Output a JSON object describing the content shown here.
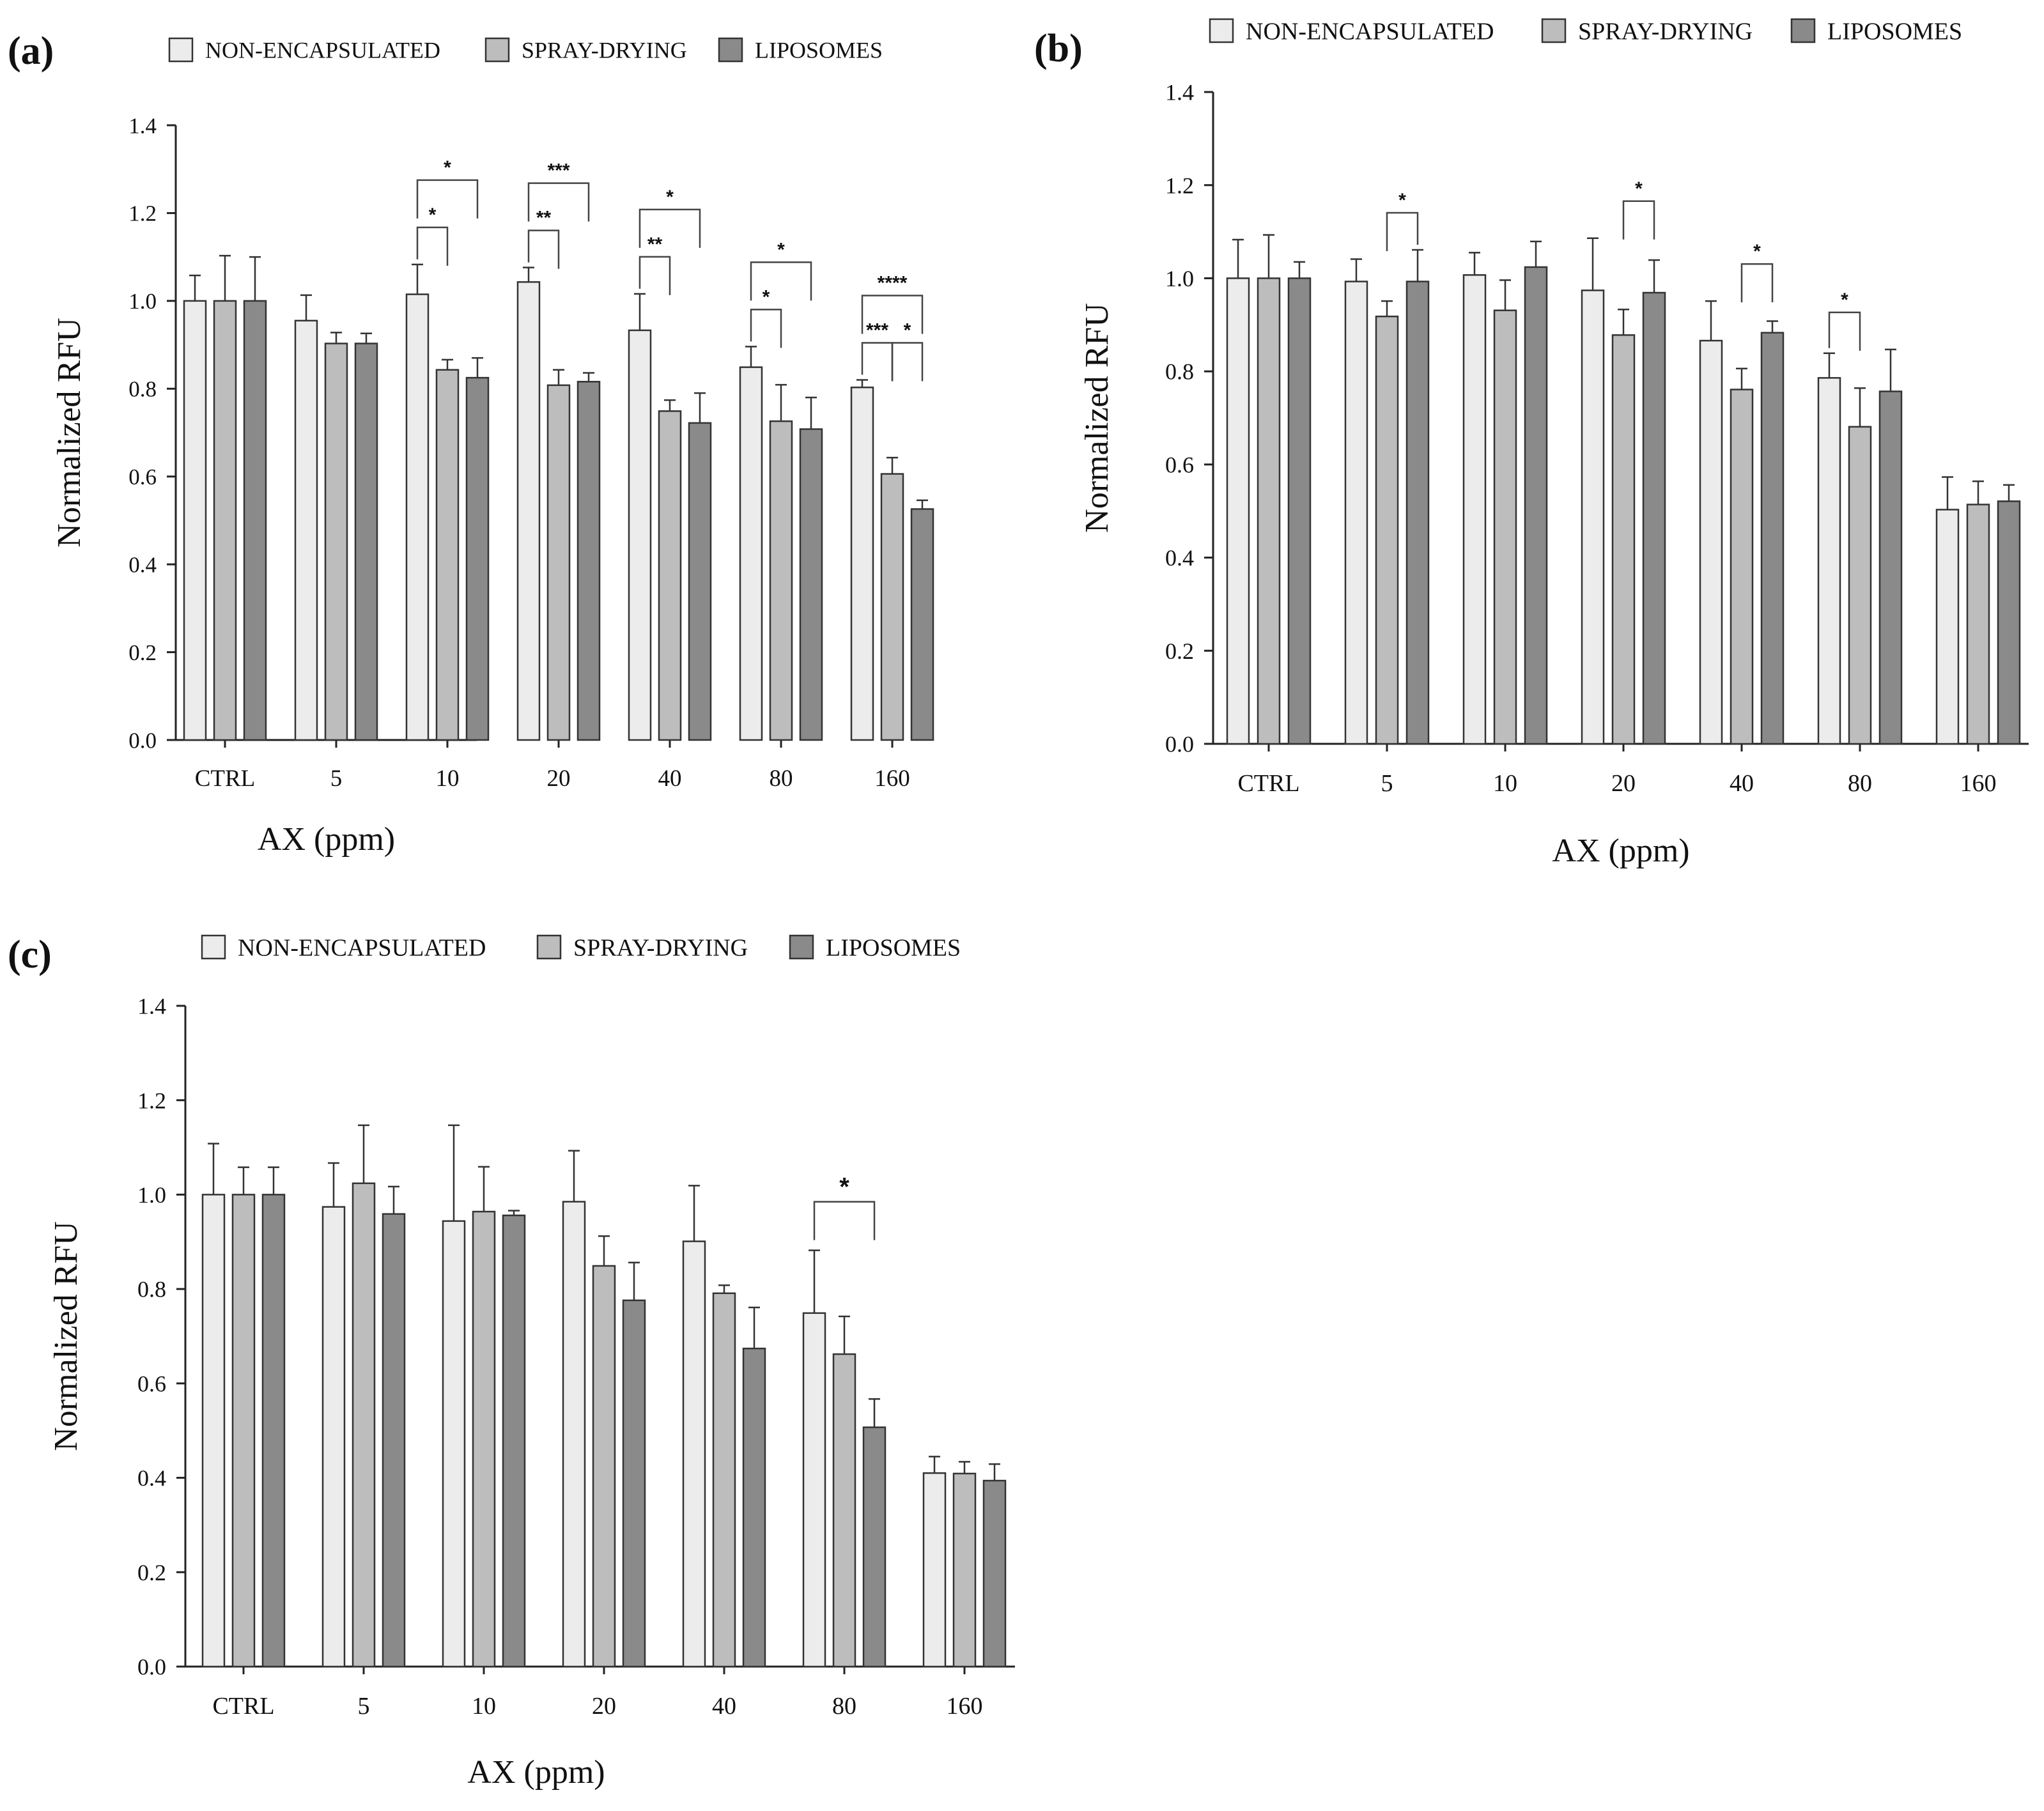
{
  "legend_labels": [
    "NON-ENCAPSULATED",
    "SPRAY-DRYING",
    "LIPOSOMES"
  ],
  "colors": {
    "non_encapsulated": "#ececec",
    "spray_drying": "#bdbdbd",
    "liposomes": "#8a8a8a",
    "stroke": "#333333"
  },
  "chart_data": [
    {
      "type": "bar",
      "panel_label": "(a)",
      "xlabel": "AX (ppm)",
      "ylabel": "Normalized RFU",
      "ylim": [
        0,
        1.4
      ],
      "yticks": [
        "0.0",
        "0.2",
        "0.4",
        "0.6",
        "0.8",
        "1.0",
        "1.2",
        "1.4"
      ],
      "categories": [
        "CTRL",
        "5",
        "10",
        "20",
        "40",
        "80",
        "160"
      ],
      "series": [
        {
          "name": "NON-ENCAPSULATED",
          "values": [
            1.0,
            0.955,
            1.015,
            1.043,
            0.933,
            0.849,
            0.803
          ],
          "errors": [
            0.058,
            0.058,
            0.068,
            0.033,
            0.083,
            0.047,
            0.017
          ]
        },
        {
          "name": "SPRAY-DRYING",
          "values": [
            1.0,
            0.903,
            0.843,
            0.808,
            0.749,
            0.726,
            0.606
          ],
          "errors": [
            0.103,
            0.025,
            0.023,
            0.035,
            0.025,
            0.083,
            0.037
          ]
        },
        {
          "name": "LIPOSOMES",
          "values": [
            1.0,
            0.903,
            0.825,
            0.816,
            0.722,
            0.708,
            0.526
          ],
          "errors": [
            0.1,
            0.023,
            0.045,
            0.02,
            0.068,
            0.072,
            0.02
          ]
        }
      ],
      "significance": [
        {
          "category": "10",
          "from": 0,
          "to": 1,
          "level": 1,
          "label": "*"
        },
        {
          "category": "10",
          "from": 0,
          "to": 2,
          "level": 2,
          "label": "*"
        },
        {
          "category": "20",
          "from": 0,
          "to": 1,
          "level": 1,
          "label": "**"
        },
        {
          "category": "20",
          "from": 0,
          "to": 2,
          "level": 2,
          "label": "***"
        },
        {
          "category": "40",
          "from": 0,
          "to": 1,
          "level": 1,
          "label": "**"
        },
        {
          "category": "40",
          "from": 0,
          "to": 2,
          "level": 2,
          "label": "*"
        },
        {
          "category": "80",
          "from": 0,
          "to": 1,
          "level": 1,
          "label": "*"
        },
        {
          "category": "80",
          "from": 0,
          "to": 2,
          "level": 2,
          "label": "*"
        },
        {
          "category": "160",
          "from": 0,
          "to": 1,
          "level": 1,
          "label": "***"
        },
        {
          "category": "160",
          "from": 1,
          "to": 2,
          "level": 1,
          "label": "*"
        },
        {
          "category": "160",
          "from": 0,
          "to": 2,
          "level": 2,
          "label": "****"
        }
      ]
    },
    {
      "type": "bar",
      "panel_label": "(b)",
      "xlabel": "AX (ppm)",
      "ylabel": "Normalized RFU",
      "ylim": [
        0,
        1.4
      ],
      "yticks": [
        "0.0",
        "0.2",
        "0.4",
        "0.6",
        "0.8",
        "1.0",
        "1.2",
        "1.4"
      ],
      "categories": [
        "CTRL",
        "5",
        "10",
        "20",
        "40",
        "80",
        "160"
      ],
      "series": [
        {
          "name": "NON-ENCAPSULATED",
          "values": [
            1.0,
            0.993,
            1.007,
            0.974,
            0.866,
            0.786,
            0.503
          ],
          "errors": [
            0.083,
            0.048,
            0.048,
            0.112,
            0.085,
            0.053,
            0.07
          ]
        },
        {
          "name": "SPRAY-DRYING",
          "values": [
            1.0,
            0.918,
            0.931,
            0.878,
            0.761,
            0.681,
            0.514
          ],
          "errors": [
            0.093,
            0.033,
            0.065,
            0.055,
            0.045,
            0.083,
            0.05
          ]
        },
        {
          "name": "LIPOSOMES",
          "values": [
            1.0,
            0.993,
            1.024,
            0.969,
            0.883,
            0.757,
            0.521
          ],
          "errors": [
            0.035,
            0.068,
            0.055,
            0.07,
            0.025,
            0.09,
            0.035
          ]
        }
      ],
      "significance": [
        {
          "category": "5",
          "from": 1,
          "to": 2,
          "level": 1,
          "label": "*"
        },
        {
          "category": "20",
          "from": 1,
          "to": 2,
          "level": 1,
          "label": "*"
        },
        {
          "category": "40",
          "from": 1,
          "to": 2,
          "level": 1,
          "label": "*"
        },
        {
          "category": "80",
          "from": 0,
          "to": 1,
          "level": 1,
          "label": "*"
        }
      ]
    },
    {
      "type": "bar",
      "panel_label": "(c)",
      "xlabel": "AX (ppm)",
      "ylabel": "Normalized RFU",
      "ylim": [
        0,
        1.4
      ],
      "yticks": [
        "0.0",
        "0.2",
        "0.4",
        "0.6",
        "0.8",
        "1.0",
        "1.2",
        "1.4"
      ],
      "categories": [
        "CTRL",
        "5",
        "10",
        "20",
        "40",
        "80",
        "160"
      ],
      "series": [
        {
          "name": "NON-ENCAPSULATED",
          "values": [
            1.0,
            0.974,
            0.944,
            0.985,
            0.901,
            0.749,
            0.41
          ],
          "errors": [
            0.108,
            0.093,
            0.203,
            0.108,
            0.118,
            0.133,
            0.035
          ]
        },
        {
          "name": "SPRAY-DRYING",
          "values": [
            1.0,
            1.024,
            0.964,
            0.849,
            0.791,
            0.662,
            0.409
          ],
          "errors": [
            0.058,
            0.123,
            0.095,
            0.063,
            0.017,
            0.08,
            0.025
          ]
        },
        {
          "name": "LIPOSOMES",
          "values": [
            1.0,
            0.959,
            0.956,
            0.776,
            0.674,
            0.507,
            0.394
          ],
          "errors": [
            0.058,
            0.058,
            0.01,
            0.08,
            0.087,
            0.06,
            0.035
          ]
        }
      ],
      "significance": [
        {
          "category": "80",
          "from": 0,
          "to": 2,
          "level": 1,
          "label": "*"
        }
      ]
    }
  ]
}
